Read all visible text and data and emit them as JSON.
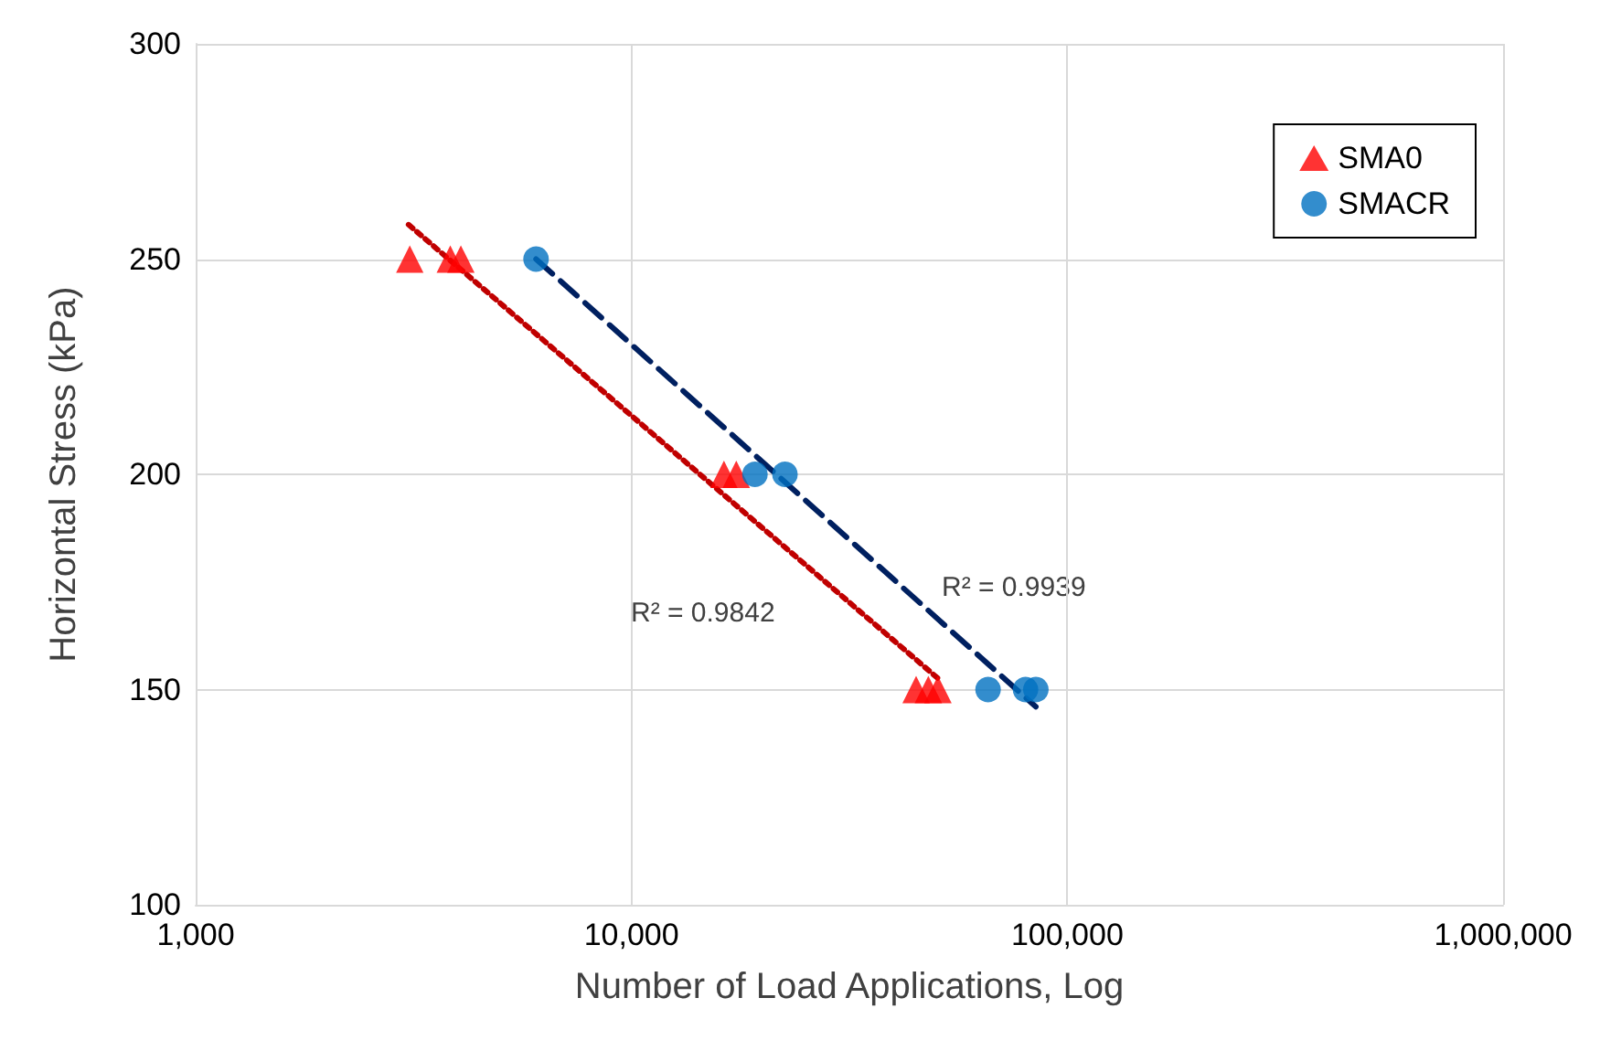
{
  "chart_data": {
    "type": "scatter",
    "xlabel": "Number of Load Applications, Log",
    "ylabel": "Horizontal Stress (kPa)",
    "log": "x",
    "grid": true,
    "legend": "top right",
    "xlim": [
      1000,
      1000000
    ],
    "xticks": [
      {
        "value": 1000,
        "label": "1,000"
      },
      {
        "value": 10000,
        "label": "10,000"
      },
      {
        "value": 100000,
        "label": "100,000"
      },
      {
        "value": 1000000,
        "label": "1,000,000"
      }
    ],
    "ylim": [
      100,
      300
    ],
    "yticks": [
      100,
      150,
      200,
      250,
      300
    ],
    "series": [
      {
        "name": "SMA0",
        "marker": "triangle",
        "color": "#ff0000",
        "x": [
          3100,
          3840,
          4060,
          16300,
          17400,
          45000,
          48000,
          50500
        ],
        "values": [
          250,
          250,
          250,
          200,
          200,
          150,
          150,
          150
        ]
      },
      {
        "name": "SMACR",
        "marker": "circle",
        "color": "#0070c0",
        "x": [
          6040,
          19200,
          22500,
          65800,
          80200,
          84700
        ],
        "values": [
          250,
          200,
          200,
          150,
          150,
          150
        ]
      },
      {
        "type": "line",
        "marker": "none",
        "line_style": "dotted",
        "color": "#c00000",
        "x": [
          3080,
          51300
        ],
        "values": [
          258,
          152
        ]
      },
      {
        "type": "line",
        "marker": "none",
        "line_style": "dashed",
        "color": "#002060",
        "x": [
          6040,
          84700
        ],
        "values": [
          250,
          146
        ]
      }
    ],
    "annotations": [
      "R² = 0.9842",
      "R² = 0.9939"
    ]
  }
}
